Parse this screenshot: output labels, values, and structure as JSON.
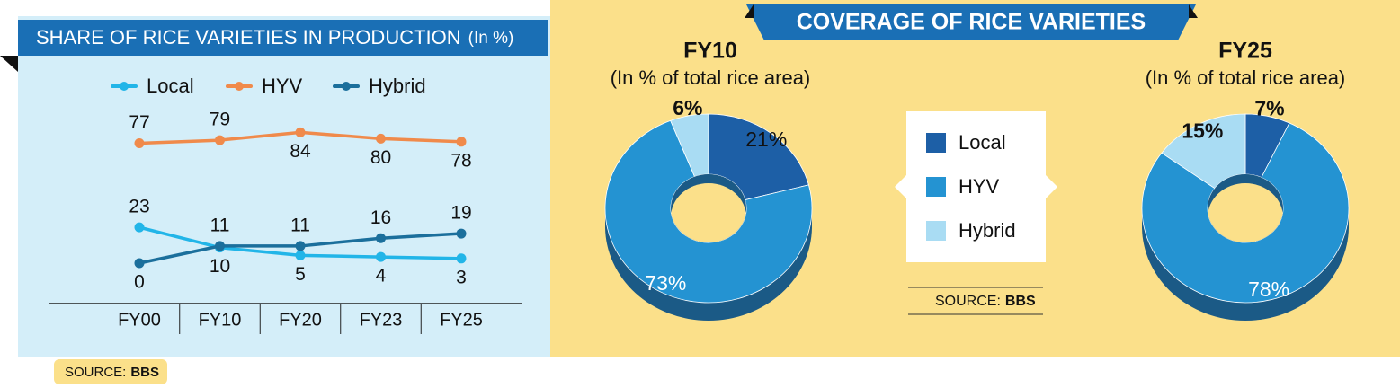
{
  "coverage_title": "COVERAGE OF RICE VARIETIES",
  "coverage_source": {
    "label": "SOURCE:",
    "name": "BBS"
  },
  "chart_data": [
    {
      "type": "line",
      "title": "SHARE OF RICE VARIETIES IN PRODUCTION",
      "subtitle": "(In %)",
      "categories": [
        "FY00",
        "FY10",
        "FY20",
        "FY23",
        "FY25"
      ],
      "series": [
        {
          "name": "Local",
          "color": "#22b5e8",
          "values": [
            23,
            10,
            5,
            4,
            3
          ]
        },
        {
          "name": "HYV",
          "color": "#f08a4b",
          "values": [
            77,
            79,
            84,
            80,
            78
          ]
        },
        {
          "name": "Hybrid",
          "color": "#1b6f9c",
          "values": [
            0,
            11,
            11,
            16,
            19
          ]
        }
      ],
      "ylim": [
        0,
        90
      ],
      "source": {
        "label": "SOURCE:",
        "name": "BBS"
      }
    },
    {
      "type": "pie",
      "title": "FY10",
      "subtitle": "(In % of total rice area)",
      "categories": [
        "Local",
        "HYV",
        "Hybrid"
      ],
      "values": [
        21,
        73,
        6
      ],
      "value_labels": [
        "21%",
        "73%",
        "6%"
      ],
      "colors": [
        "#1d5fa6",
        "#2493d2",
        "#a9dcf3"
      ]
    },
    {
      "type": "pie",
      "title": "FY25",
      "subtitle": "(In % of total rice area)",
      "categories": [
        "Local",
        "HYV",
        "Hybrid"
      ],
      "values": [
        7,
        78,
        15
      ],
      "value_labels": [
        "7%",
        "78%",
        "15%"
      ],
      "colors": [
        "#1d5fa6",
        "#2493d2",
        "#a9dcf3"
      ]
    }
  ]
}
